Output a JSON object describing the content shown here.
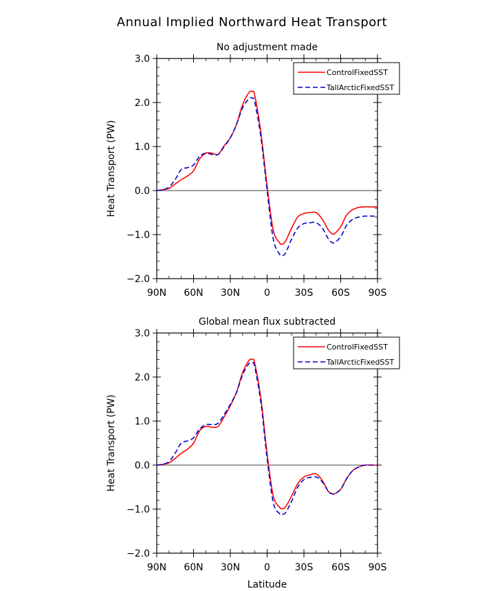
{
  "page": {
    "title": "Annual Implied Northward Heat Transport"
  },
  "chart_data": [
    {
      "type": "line",
      "title": "No adjustment made",
      "xlabel": "",
      "ylabel": "Heat Transport (PW)",
      "ylim": [
        -2.0,
        3.0
      ],
      "xlim": [
        90,
        -90
      ],
      "x_ticks": [
        90,
        60,
        30,
        0,
        -30,
        -60,
        -90
      ],
      "x_tick_labels": [
        "90N",
        "60N",
        "30N",
        "0",
        "30S",
        "60S",
        "90S"
      ],
      "y_ticks": [
        -2.0,
        -1.0,
        0.0,
        1.0,
        2.0,
        3.0
      ],
      "y_tick_labels": [
        "−2.0",
        "−1.0",
        "0.0",
        "1.0",
        "2.0",
        "3.0"
      ],
      "legend_position": "top-right",
      "zero_line": true,
      "series": [
        {
          "name": "ControlFixedSST",
          "color": "#ff0000",
          "dash": "solid",
          "x": [
            90,
            85,
            80,
            75,
            70,
            65,
            60,
            55,
            50,
            45,
            40,
            35,
            30,
            25,
            20,
            15,
            12,
            10,
            5,
            0,
            -5,
            -10,
            -12,
            -15,
            -20,
            -25,
            -30,
            -35,
            -40,
            -45,
            -50,
            -53,
            -55,
            -60,
            -65,
            -70,
            -75,
            -80,
            -85,
            -90
          ],
          "y": [
            0.0,
            0.02,
            0.05,
            0.15,
            0.25,
            0.33,
            0.45,
            0.72,
            0.85,
            0.85,
            0.82,
            1.02,
            1.2,
            1.5,
            1.95,
            2.22,
            2.25,
            2.15,
            1.3,
            0.1,
            -0.9,
            -1.18,
            -1.22,
            -1.15,
            -0.85,
            -0.6,
            -0.52,
            -0.5,
            -0.5,
            -0.65,
            -0.9,
            -0.98,
            -0.98,
            -0.82,
            -0.55,
            -0.43,
            -0.38,
            -0.37,
            -0.37,
            -0.37
          ]
        },
        {
          "name": "TallArcticFixedSST",
          "color": "#0000cc",
          "dash": "dashed",
          "x": [
            90,
            85,
            80,
            75,
            70,
            65,
            60,
            55,
            50,
            45,
            40,
            35,
            30,
            25,
            20,
            15,
            12,
            10,
            5,
            0,
            -5,
            -10,
            -12,
            -15,
            -20,
            -25,
            -30,
            -35,
            -40,
            -45,
            -50,
            -53,
            -55,
            -60,
            -65,
            -70,
            -75,
            -80,
            -85,
            -90
          ],
          "y": [
            0.0,
            0.02,
            0.08,
            0.25,
            0.48,
            0.52,
            0.58,
            0.78,
            0.85,
            0.82,
            0.82,
            1.0,
            1.2,
            1.5,
            1.88,
            2.08,
            2.1,
            2.0,
            1.2,
            0.0,
            -1.1,
            -1.44,
            -1.48,
            -1.42,
            -1.1,
            -0.85,
            -0.75,
            -0.73,
            -0.73,
            -0.85,
            -1.1,
            -1.18,
            -1.18,
            -1.05,
            -0.78,
            -0.65,
            -0.6,
            -0.58,
            -0.58,
            -0.58
          ]
        }
      ]
    },
    {
      "type": "line",
      "title": "Global mean flux subtracted",
      "xlabel": "Latitude",
      "ylabel": "Heat Transport (PW)",
      "ylim": [
        -2.0,
        3.0
      ],
      "xlim": [
        90,
        -90
      ],
      "x_ticks": [
        90,
        60,
        30,
        0,
        -30,
        -60,
        -90
      ],
      "x_tick_labels": [
        "90N",
        "60N",
        "30N",
        "0",
        "30S",
        "60S",
        "90S"
      ],
      "y_ticks": [
        -2.0,
        -1.0,
        0.0,
        1.0,
        2.0,
        3.0
      ],
      "y_tick_labels": [
        "−2.0",
        "−1.0",
        "0.0",
        "1.0",
        "2.0",
        "3.0"
      ],
      "legend_position": "top-right",
      "zero_line": true,
      "series": [
        {
          "name": "ControlFixedSST",
          "color": "#ff0000",
          "dash": "solid",
          "x": [
            90,
            85,
            80,
            75,
            70,
            65,
            60,
            55,
            50,
            45,
            40,
            35,
            30,
            25,
            20,
            15,
            12,
            10,
            5,
            0,
            -5,
            -10,
            -12,
            -15,
            -20,
            -25,
            -30,
            -35,
            -40,
            -45,
            -50,
            -53,
            -55,
            -60,
            -65,
            -70,
            -75,
            -80,
            -85,
            -90
          ],
          "y": [
            0.0,
            0.02,
            0.05,
            0.15,
            0.27,
            0.36,
            0.5,
            0.78,
            0.88,
            0.86,
            0.88,
            1.1,
            1.35,
            1.65,
            2.1,
            2.37,
            2.4,
            2.3,
            1.5,
            0.25,
            -0.7,
            -0.95,
            -0.99,
            -0.95,
            -0.7,
            -0.42,
            -0.27,
            -0.22,
            -0.2,
            -0.35,
            -0.6,
            -0.65,
            -0.65,
            -0.55,
            -0.3,
            -0.12,
            -0.04,
            0.0,
            0.0,
            0.0
          ]
        },
        {
          "name": "TallArcticFixedSST",
          "color": "#0000cc",
          "dash": "dashed",
          "x": [
            90,
            85,
            80,
            75,
            70,
            65,
            60,
            55,
            50,
            45,
            40,
            35,
            30,
            25,
            20,
            15,
            12,
            10,
            5,
            0,
            -5,
            -10,
            -12,
            -15,
            -20,
            -25,
            -30,
            -35,
            -40,
            -45,
            -50,
            -53,
            -55,
            -60,
            -65,
            -70,
            -75,
            -80,
            -85,
            -90
          ],
          "y": [
            0.0,
            0.02,
            0.08,
            0.27,
            0.5,
            0.55,
            0.62,
            0.82,
            0.92,
            0.92,
            0.95,
            1.15,
            1.38,
            1.65,
            2.05,
            2.3,
            2.33,
            2.22,
            1.4,
            0.15,
            -0.85,
            -1.1,
            -1.12,
            -1.08,
            -0.82,
            -0.5,
            -0.33,
            -0.28,
            -0.27,
            -0.38,
            -0.6,
            -0.65,
            -0.65,
            -0.55,
            -0.3,
            -0.12,
            -0.04,
            0.0,
            0.0,
            0.0
          ]
        }
      ]
    }
  ]
}
